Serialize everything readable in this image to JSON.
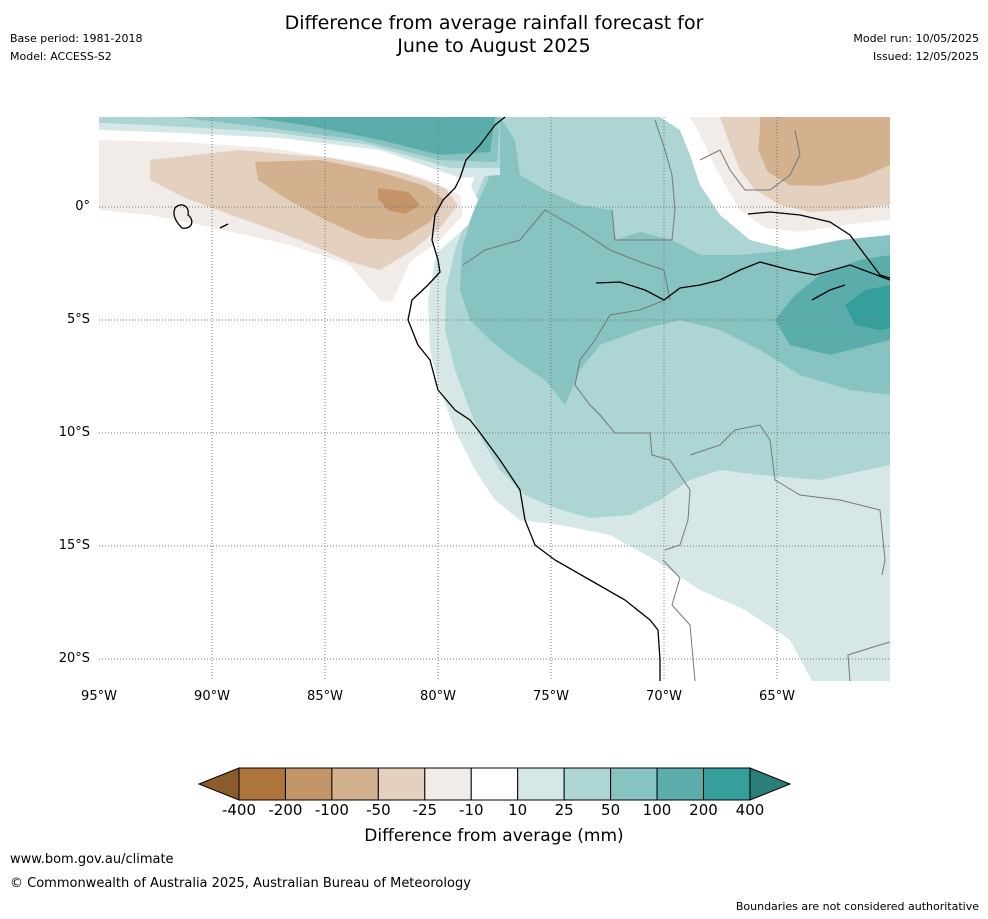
{
  "header": {
    "title_line1": "Difference from average rainfall forecast for",
    "title_line2": "June to August 2025",
    "base_period": "Base period: 1981-2018",
    "model": "Model: ACCESS-S2",
    "model_run": "Model run: 10/05/2025",
    "issued": "Issued: 12/05/2025"
  },
  "map": {
    "lat_labels": [
      "0°",
      "5°S",
      "10°S",
      "15°S",
      "20°S"
    ],
    "lon_labels": [
      "95°W",
      "90°W",
      "85°W",
      "80°W",
      "75°W",
      "70°W",
      "65°W"
    ]
  },
  "colorbar": {
    "title": "Difference from average (mm)",
    "labels": [
      "-400",
      "-200",
      "-100",
      "-50",
      "-25",
      "-10",
      "10",
      "25",
      "50",
      "100",
      "200",
      "400"
    ],
    "colors": {
      "under": "#8c5a2b",
      "bins": [
        "#ad753b",
        "#c29468",
        "#d3b08e",
        "#e3d0bf",
        "#f1ece8",
        "#ffffff",
        "#d5e8e7",
        "#acd5d4",
        "#86c3c1",
        "#5badab",
        "#35a09b"
      ],
      "over": "#2a7d79"
    }
  },
  "footer": {
    "url": "www.bom.gov.au/climate",
    "copyright": "© Commonwealth of Australia 2025, Australian Bureau of Meteorology",
    "disclaimer": "Boundaries are not considered authoritative"
  }
}
